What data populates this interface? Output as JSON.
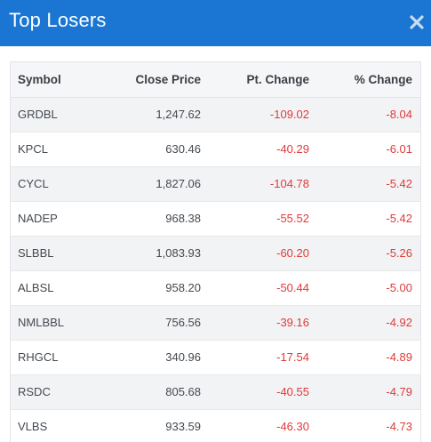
{
  "header": {
    "title": "Top Losers",
    "close_icon": "close-icon",
    "bg_color": "#1a76d2"
  },
  "table": {
    "columns": [
      "Symbol",
      "Close Price",
      "Pt. Change",
      "% Change"
    ],
    "negative_color": "#e03a3a",
    "rows": [
      {
        "symbol": "GRDBL",
        "close": "1,247.62",
        "pt": "-109.02",
        "pct": "-8.04"
      },
      {
        "symbol": "KPCL",
        "close": "630.46",
        "pt": "-40.29",
        "pct": "-6.01"
      },
      {
        "symbol": "CYCL",
        "close": "1,827.06",
        "pt": "-104.78",
        "pct": "-5.42"
      },
      {
        "symbol": "NADEP",
        "close": "968.38",
        "pt": "-55.52",
        "pct": "-5.42"
      },
      {
        "symbol": "SLBBL",
        "close": "1,083.93",
        "pt": "-60.20",
        "pct": "-5.26"
      },
      {
        "symbol": "ALBSL",
        "close": "958.20",
        "pt": "-50.44",
        "pct": "-5.00"
      },
      {
        "symbol": "NMLBBL",
        "close": "756.56",
        "pt": "-39.16",
        "pct": "-4.92"
      },
      {
        "symbol": "RHGCL",
        "close": "340.96",
        "pt": "-17.54",
        "pct": "-4.89"
      },
      {
        "symbol": "RSDC",
        "close": "805.68",
        "pt": "-40.55",
        "pct": "-4.79"
      },
      {
        "symbol": "VLBS",
        "close": "933.59",
        "pt": "-46.30",
        "pct": "-4.73"
      }
    ]
  }
}
